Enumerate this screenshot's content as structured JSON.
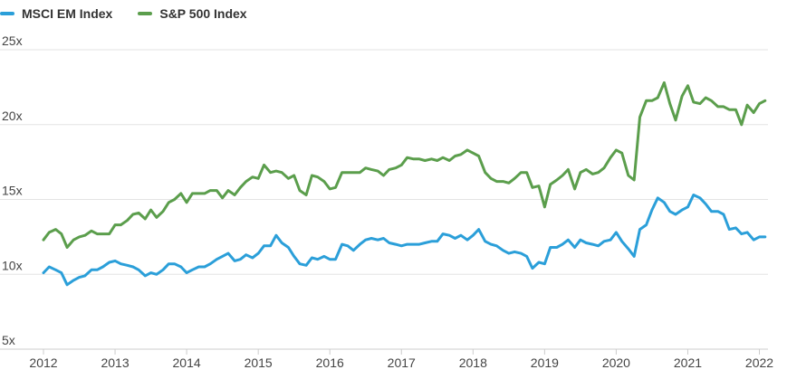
{
  "colors": {
    "msci": "#2b9fd9",
    "sp500": "#5b9e4c",
    "grid": "#e3e3e3",
    "axis": "#cccccc"
  },
  "chart_data": {
    "type": "line",
    "title": "",
    "xlabel": "",
    "ylabel": "",
    "xlim": [
      2012,
      2022.12
    ],
    "ylim": [
      5,
      25
    ],
    "grid": true,
    "legend_position": "top-left",
    "x_tick_labels": [
      "2012",
      "2013",
      "2014",
      "2015",
      "2016",
      "2017",
      "2018",
      "2019",
      "2020",
      "2021",
      "2022"
    ],
    "x_tick_values": [
      2012,
      2013,
      2014,
      2015,
      2016,
      2017,
      2018,
      2019,
      2020,
      2021,
      2022
    ],
    "y_tick_labels": [
      "5x",
      "10x",
      "15x",
      "20x",
      "25x"
    ],
    "y_tick_values": [
      5,
      10,
      15,
      20,
      25
    ],
    "x": [
      2012.0,
      2012.08,
      2012.17,
      2012.25,
      2012.33,
      2012.42,
      2012.5,
      2012.58,
      2012.67,
      2012.75,
      2012.83,
      2012.92,
      2013.0,
      2013.08,
      2013.17,
      2013.25,
      2013.33,
      2013.42,
      2013.5,
      2013.58,
      2013.67,
      2013.75,
      2013.83,
      2013.92,
      2014.0,
      2014.08,
      2014.17,
      2014.25,
      2014.33,
      2014.42,
      2014.5,
      2014.58,
      2014.67,
      2014.75,
      2014.83,
      2014.92,
      2015.0,
      2015.08,
      2015.17,
      2015.25,
      2015.33,
      2015.42,
      2015.5,
      2015.58,
      2015.67,
      2015.75,
      2015.83,
      2015.92,
      2016.0,
      2016.08,
      2016.17,
      2016.25,
      2016.33,
      2016.42,
      2016.5,
      2016.58,
      2016.67,
      2016.75,
      2016.83,
      2016.92,
      2017.0,
      2017.08,
      2017.17,
      2017.25,
      2017.33,
      2017.42,
      2017.5,
      2017.58,
      2017.67,
      2017.75,
      2017.83,
      2017.92,
      2018.0,
      2018.08,
      2018.17,
      2018.25,
      2018.33,
      2018.42,
      2018.5,
      2018.58,
      2018.67,
      2018.75,
      2018.83,
      2018.92,
      2019.0,
      2019.08,
      2019.17,
      2019.25,
      2019.33,
      2019.42,
      2019.5,
      2019.58,
      2019.67,
      2019.75,
      2019.83,
      2019.92,
      2020.0,
      2020.08,
      2020.17,
      2020.25,
      2020.33,
      2020.42,
      2020.5,
      2020.58,
      2020.67,
      2020.75,
      2020.83,
      2020.92,
      2021.0,
      2021.08,
      2021.17,
      2021.25,
      2021.33,
      2021.42,
      2021.5,
      2021.58,
      2021.67,
      2021.75,
      2021.83,
      2021.92,
      2022.0,
      2022.08
    ],
    "series": [
      {
        "name": "MSCI EM Index",
        "color": "#2b9fd9",
        "values": [
          10.1,
          10.5,
          10.3,
          10.1,
          9.3,
          9.6,
          9.8,
          9.9,
          10.3,
          10.3,
          10.5,
          10.8,
          10.9,
          10.7,
          10.6,
          10.5,
          10.3,
          9.9,
          10.1,
          10.0,
          10.3,
          10.7,
          10.7,
          10.5,
          10.1,
          10.3,
          10.5,
          10.5,
          10.7,
          11.0,
          11.2,
          11.4,
          10.9,
          11.0,
          11.3,
          11.1,
          11.4,
          11.9,
          11.9,
          12.6,
          12.1,
          11.8,
          11.2,
          10.7,
          10.6,
          11.1,
          11.0,
          11.2,
          11.0,
          11.0,
          12.0,
          11.9,
          11.6,
          12.0,
          12.3,
          12.4,
          12.3,
          12.4,
          12.1,
          12.0,
          11.9,
          12.0,
          12.0,
          12.0,
          12.1,
          12.2,
          12.2,
          12.7,
          12.6,
          12.4,
          12.6,
          12.3,
          12.6,
          13.0,
          12.2,
          12.0,
          11.9,
          11.6,
          11.4,
          11.5,
          11.4,
          11.2,
          10.4,
          10.8,
          10.7,
          11.8,
          11.8,
          12.0,
          12.3,
          11.8,
          12.3,
          12.1,
          12.0,
          11.9,
          12.2,
          12.3,
          12.8,
          12.2,
          11.7,
          11.2,
          13.0,
          13.3,
          14.3,
          15.1,
          14.8,
          14.2,
          14.0,
          14.3,
          14.5,
          15.3,
          15.1,
          14.7,
          14.2,
          14.2,
          14.0,
          13.0,
          13.1,
          12.7,
          12.8,
          12.3,
          12.5,
          12.5
        ]
      },
      {
        "name": "S&P 500 Index",
        "color": "#5b9e4c",
        "values": [
          12.3,
          12.8,
          13.0,
          12.7,
          11.8,
          12.3,
          12.5,
          12.6,
          12.9,
          12.7,
          12.7,
          12.7,
          13.3,
          13.3,
          13.6,
          14.0,
          14.1,
          13.7,
          14.3,
          13.8,
          14.2,
          14.8,
          15.0,
          15.4,
          14.8,
          15.4,
          15.4,
          15.4,
          15.6,
          15.6,
          15.1,
          15.6,
          15.3,
          15.8,
          16.2,
          16.5,
          16.4,
          17.3,
          16.8,
          16.9,
          16.8,
          16.4,
          16.6,
          15.6,
          15.3,
          16.6,
          16.5,
          16.2,
          15.7,
          15.8,
          16.8,
          16.8,
          16.8,
          16.8,
          17.1,
          17.0,
          16.9,
          16.6,
          17.0,
          17.1,
          17.3,
          17.8,
          17.7,
          17.7,
          17.6,
          17.7,
          17.6,
          17.8,
          17.6,
          17.9,
          18.0,
          18.3,
          18.1,
          17.9,
          16.8,
          16.4,
          16.2,
          16.2,
          16.1,
          16.4,
          16.8,
          16.8,
          15.8,
          15.9,
          14.5,
          16.0,
          16.3,
          16.6,
          17.0,
          15.7,
          16.8,
          17.0,
          16.7,
          16.8,
          17.1,
          17.8,
          18.3,
          18.1,
          16.6,
          16.3,
          20.5,
          21.6,
          21.6,
          21.8,
          22.8,
          21.4,
          20.3,
          21.9,
          22.6,
          21.5,
          21.4,
          21.8,
          21.6,
          21.2,
          21.2,
          21.0,
          21.0,
          20.0,
          21.3,
          20.8,
          21.4,
          21.6
        ]
      }
    ]
  }
}
